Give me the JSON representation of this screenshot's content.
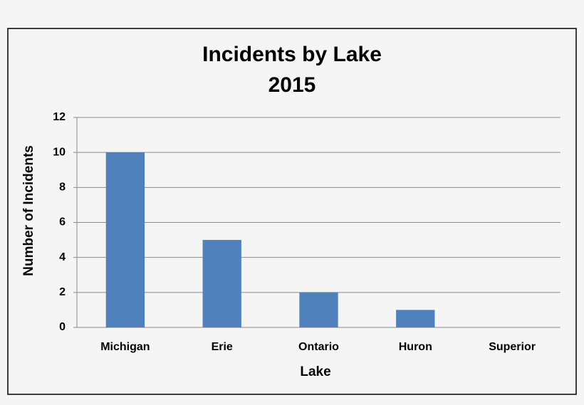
{
  "chart_data": {
    "type": "bar",
    "title": "Incidents by Lake",
    "subtitle": "2015",
    "x_label": "Lake",
    "y_label": "Number of Incidents",
    "categories": [
      "Michigan",
      "Erie",
      "Ontario",
      "Huron",
      "Superior"
    ],
    "values": [
      10,
      5,
      2,
      1,
      0
    ],
    "color": "#4f81bd",
    "ylim": [
      0,
      12
    ],
    "yticks": [
      0,
      2,
      4,
      6,
      8,
      10,
      12
    ],
    "grid": true
  }
}
